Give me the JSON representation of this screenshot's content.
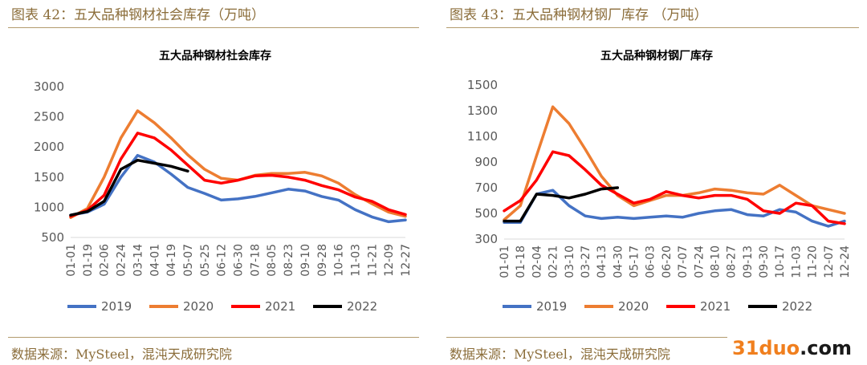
{
  "header": {
    "left_title": "图表 42：五大品种钢材社会库存（万吨）",
    "right_title": "图表 43：五大品种钢材钢厂库存 （万吨）"
  },
  "footer": {
    "left_source": "数据来源：MySteel，混沌天成研究院",
    "right_source": "数据来源：MySteel，混沌天成研究院",
    "watermark_a": "31",
    "watermark_b": "duo",
    "watermark_c": ".com"
  },
  "chart_data": [
    {
      "type": "line",
      "title": "五大品种钢材社会库存",
      "xlabel": "",
      "ylabel": "",
      "ylim": [
        500,
        3000
      ],
      "yticks": [
        500,
        1000,
        1500,
        2000,
        2500,
        3000
      ],
      "categories": [
        "01-01",
        "01-19",
        "02-06",
        "02-24",
        "03-14",
        "04-01",
        "04-19",
        "05-07",
        "05-25",
        "06-12",
        "06-30",
        "07-18",
        "08-05",
        "08-23",
        "09-10",
        "09-28",
        "10-16",
        "11-03",
        "11-21",
        "12-09",
        "12-27"
      ],
      "legend": "bottom",
      "series": [
        {
          "name": "2019",
          "color": "#4472c4",
          "values": [
            870,
            920,
            1050,
            1500,
            1860,
            1750,
            1550,
            1330,
            1230,
            1120,
            1140,
            1180,
            1240,
            1300,
            1270,
            1180,
            1120,
            960,
            840,
            760,
            790
          ]
        },
        {
          "name": "2020",
          "color": "#ed7d31",
          "values": [
            830,
            980,
            1500,
            2150,
            2600,
            2400,
            2150,
            1870,
            1630,
            1480,
            1450,
            1530,
            1560,
            1560,
            1580,
            1520,
            1400,
            1210,
            1060,
            920,
            850
          ]
        },
        {
          "name": "2021",
          "color": "#ff0000",
          "values": [
            850,
            950,
            1200,
            1800,
            2230,
            2150,
            1950,
            1700,
            1450,
            1400,
            1450,
            1520,
            1530,
            1500,
            1450,
            1360,
            1290,
            1170,
            1100,
            960,
            880
          ]
        },
        {
          "name": "2022",
          "color": "#000000",
          "values": [
            870,
            930,
            1100,
            1630,
            1780,
            1730,
            1680,
            1600,
            null,
            null,
            null,
            null,
            null,
            null,
            null,
            null,
            null,
            null,
            null,
            null,
            null
          ]
        }
      ]
    },
    {
      "type": "line",
      "title": "五大品种钢材钢厂库存",
      "xlabel": "",
      "ylabel": "",
      "ylim": [
        300,
        1500
      ],
      "yticks": [
        300,
        500,
        700,
        900,
        1100,
        1300,
        1500
      ],
      "categories": [
        "01-01",
        "01-18",
        "02-04",
        "02-21",
        "03-10",
        "03-27",
        "04-13",
        "04-30",
        "05-17",
        "06-03",
        "06-20",
        "07-07",
        "07-24",
        "08-10",
        "08-27",
        "09-13",
        "09-30",
        "10-17",
        "11-03",
        "11-20",
        "12-07",
        "12-24"
      ],
      "legend": "bottom",
      "series": [
        {
          "name": "2019",
          "color": "#4472c4",
          "values": [
            430,
            430,
            650,
            680,
            560,
            480,
            460,
            470,
            460,
            470,
            480,
            470,
            500,
            520,
            530,
            490,
            480,
            530,
            510,
            440,
            400,
            440
          ]
        },
        {
          "name": "2020",
          "color": "#ed7d31",
          "values": [
            450,
            560,
            950,
            1330,
            1200,
            1000,
            790,
            640,
            560,
            600,
            640,
            640,
            660,
            690,
            680,
            660,
            650,
            720,
            640,
            560,
            530,
            500
          ]
        },
        {
          "name": "2021",
          "color": "#ff0000",
          "values": [
            520,
            600,
            760,
            980,
            950,
            840,
            720,
            650,
            580,
            610,
            670,
            640,
            620,
            640,
            640,
            610,
            520,
            500,
            580,
            560,
            440,
            420
          ]
        },
        {
          "name": "2022",
          "color": "#000000",
          "values": [
            440,
            440,
            650,
            640,
            620,
            650,
            690,
            700,
            null,
            null,
            null,
            null,
            null,
            null,
            null,
            null,
            null,
            null,
            null,
            null,
            null,
            null
          ]
        }
      ]
    }
  ]
}
